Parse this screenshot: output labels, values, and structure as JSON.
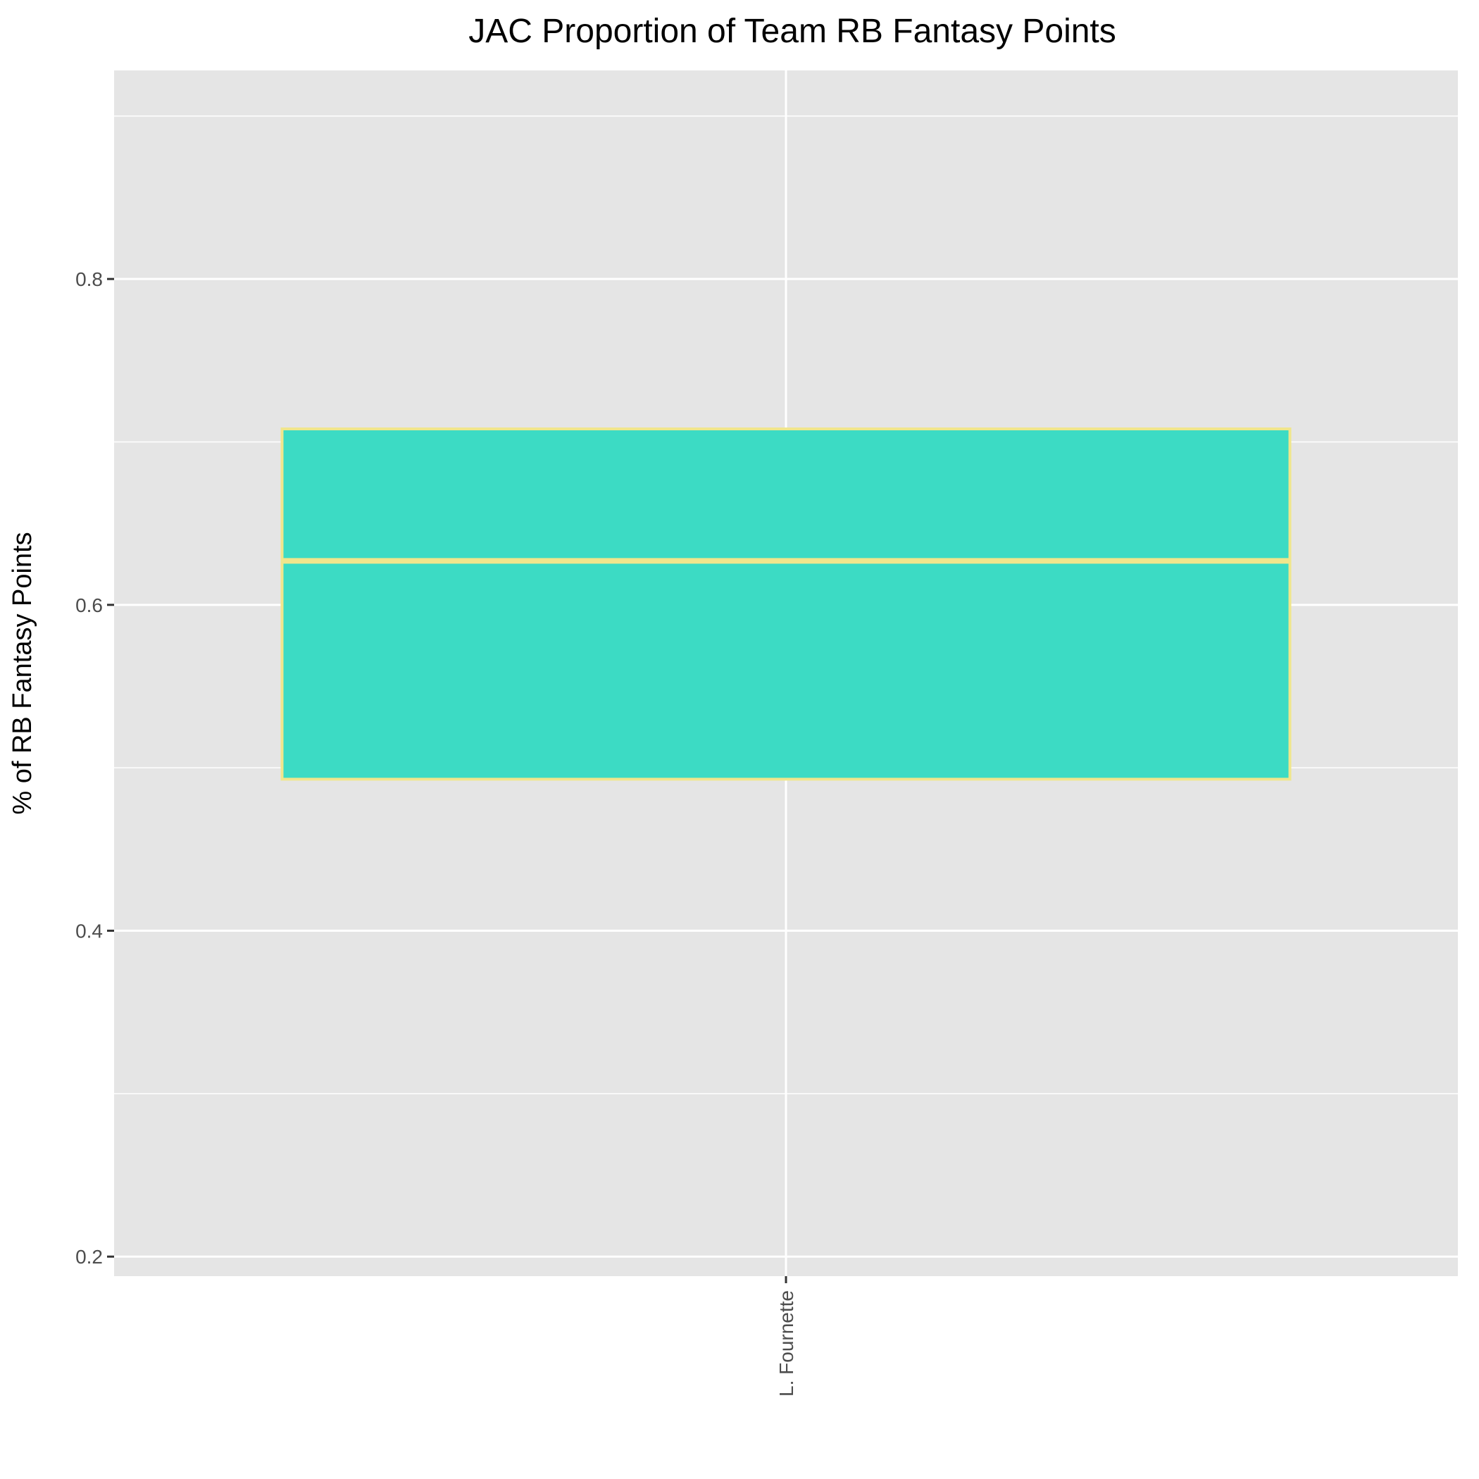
{
  "chart_data": {
    "type": "box",
    "title": "JAC Proportion of Team RB Fantasy Points",
    "xlabel": "",
    "ylabel": "% of RB Fantasy Points",
    "categories": [
      "L. Fournette"
    ],
    "boxes": [
      {
        "category": "L. Fournette",
        "q1": 0.493,
        "median": 0.627,
        "q3": 0.708
      }
    ],
    "ylim": [
      0.188,
      0.928
    ],
    "yticks": [
      {
        "value": 0.2,
        "label": "0.2"
      },
      {
        "value": 0.4,
        "label": "0.4"
      },
      {
        "value": 0.6,
        "label": "0.6"
      },
      {
        "value": 0.8,
        "label": "0.8"
      }
    ],
    "yminor": [
      0.3,
      0.5,
      0.7,
      0.9
    ],
    "grid": true,
    "colors": {
      "panel": "#E5E5E5",
      "grid": "#FFFFFF",
      "box_fill": "#3CDBC4",
      "box_outline": "#F0E68C"
    }
  }
}
